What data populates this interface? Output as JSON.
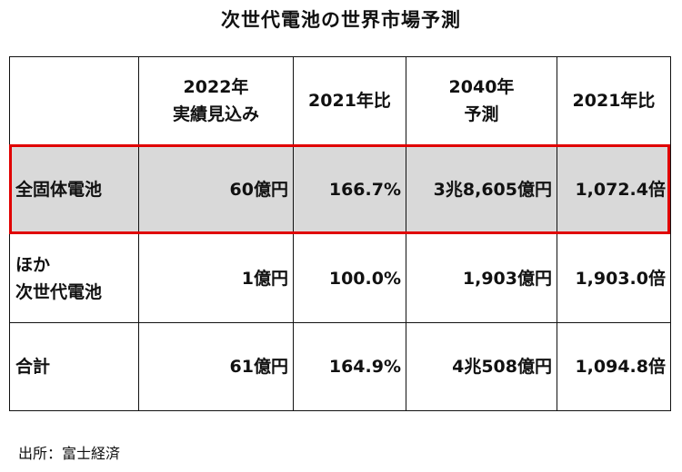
{
  "title": "次世代電池の世界市場予測",
  "table": {
    "headers": [
      {
        "lines": [
          ""
        ]
      },
      {
        "lines": [
          "2022年",
          "実績見込み"
        ]
      },
      {
        "lines": [
          "2021年比"
        ]
      },
      {
        "lines": [
          "2040年",
          "予測"
        ]
      },
      {
        "lines": [
          "2021年比"
        ]
      }
    ],
    "rows": [
      {
        "name_lines": [
          "全固体電池"
        ],
        "cells": [
          "60億円",
          "166.7%",
          "3兆8,605億円",
          "1,072.4倍"
        ],
        "highlighted": true
      },
      {
        "name_lines": [
          "ほか",
          "次世代電池"
        ],
        "cells": [
          "1億円",
          "100.0%",
          "1,903億円",
          "1,903.0倍"
        ],
        "highlighted": false
      },
      {
        "name_lines": [
          "合計"
        ],
        "cells": [
          "61億円",
          "164.9%",
          "4兆508億円",
          "1,094.8倍"
        ],
        "highlighted": false
      }
    ]
  },
  "source": "出所：富士経済",
  "colors": {
    "highlight_border": "#e00000",
    "highlight_fill": "#d9d9d9"
  }
}
